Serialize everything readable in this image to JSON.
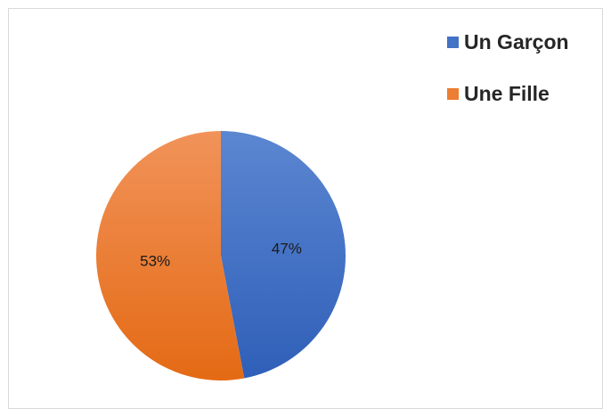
{
  "chart_data": {
    "type": "pie",
    "title": "",
    "categories": [
      "Un Garçon",
      "Une Fille"
    ],
    "values": [
      47,
      53
    ],
    "labels": [
      "47%",
      "53%"
    ],
    "colors": [
      "#4472c4",
      "#ed7d31"
    ],
    "start_angle_deg": 0,
    "direction": "clockwise",
    "legend_position": "top-right"
  }
}
